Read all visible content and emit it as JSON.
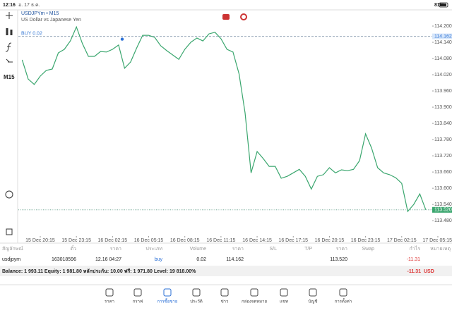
{
  "status_bar": {
    "time": "12:16",
    "date": "อ. 17 ธ.ค.",
    "battery": "81%"
  },
  "chart_data": {
    "type": "line",
    "title": "USDJPYm • M15",
    "subtitle": "US Dollar vs Japanese Yen",
    "timeframe": "M15",
    "color": "#3aa66e",
    "grid": false,
    "categories": [
      null,
      null,
      null,
      "15 Dec 20:15",
      null,
      null,
      null,
      null,
      null,
      "15 Dec 23:15",
      null,
      null,
      null,
      null,
      null,
      "16 Dec 02:15",
      null,
      null,
      null,
      null,
      null,
      "16 Dec 05:15",
      null,
      null,
      null,
      null,
      null,
      "16 Dec 08:15",
      null,
      null,
      null,
      null,
      null,
      "16 Dec 11:15",
      null,
      null,
      null,
      null,
      null,
      "16 Dec 14:15",
      null,
      null,
      null,
      null,
      null,
      "16 Dec 17:15",
      null,
      null,
      null,
      null,
      null,
      "16 Dec 20:15",
      null,
      null,
      null,
      null,
      null,
      "16 Dec 23:15",
      null,
      null,
      null,
      null,
      null,
      "17 Dec 02:15",
      null,
      null,
      null,
      null,
      null,
      "17 Dec 05:15"
    ],
    "values": [
      114.075,
      114.004,
      113.984,
      114.015,
      114.036,
      114.041,
      114.101,
      114.114,
      114.145,
      114.197,
      114.135,
      114.088,
      114.088,
      114.106,
      114.104,
      114.114,
      114.13,
      114.044,
      114.067,
      114.119,
      114.166,
      114.166,
      114.158,
      114.127,
      114.109,
      114.093,
      114.077,
      114.114,
      114.14,
      114.156,
      114.145,
      114.171,
      114.177,
      114.153,
      114.114,
      114.104,
      114.023,
      113.879,
      113.657,
      113.736,
      113.71,
      113.681,
      113.681,
      113.637,
      113.644,
      113.657,
      113.67,
      113.644,
      113.597,
      113.644,
      113.65,
      113.676,
      113.657,
      113.668,
      113.665,
      113.67,
      113.702,
      113.801,
      113.749,
      113.676,
      113.657,
      113.65,
      113.639,
      113.618,
      113.514,
      113.54,
      113.579,
      113.52,
      null,
      null
    ],
    "ylim": [
      113.423,
      114.26
    ],
    "yticks": [
      {
        "value": 113.48,
        "label": "113.480"
      },
      {
        "value": 113.54,
        "label": "113.540"
      },
      {
        "value": 113.6,
        "label": "113.600"
      },
      {
        "value": 113.66,
        "label": "113.660"
      },
      {
        "value": 113.72,
        "label": "113.720"
      },
      {
        "value": 113.78,
        "label": "113.780"
      },
      {
        "value": 113.84,
        "label": "113.840"
      },
      {
        "value": 113.9,
        "label": "113.900"
      },
      {
        "value": 113.96,
        "label": "113.960"
      },
      {
        "value": 114.02,
        "label": "114.020"
      },
      {
        "value": 114.08,
        "label": "114.080"
      },
      {
        "value": 114.14,
        "label": "114.140"
      },
      {
        "value": 114.2,
        "label": "114.200"
      }
    ],
    "position_line": {
      "label": "BUY 0.02",
      "value": 114.162
    },
    "bid_line": {
      "value": 113.52,
      "label": "113.520"
    }
  },
  "trades": {
    "columns": [
      "สัญลักษณ์",
      "ตั๋ว",
      "ราคา",
      "ประเภท",
      "Volume",
      "ราคา",
      "S/L",
      "T/P",
      "ราคา",
      "Swap",
      "กำไร",
      "หมายเหตุ"
    ],
    "row": {
      "symbol": "usdjpym",
      "ticket": "163018596",
      "time": "12.16 04:27",
      "type": "buy",
      "volume": "0.02",
      "open_price": "114.162",
      "price": "113.520",
      "profit": "-11.31"
    }
  },
  "summary": {
    "text": "Balance: 1 993.11 Equity: 1 981.80 หลักประกัน: 10.00 ฟรี: 1 971.80 Level: 19 818.00%",
    "profit": "-11.31",
    "currency": "USD"
  },
  "tabs": [
    "ราคา",
    "กราฟ",
    "การซื้อขาย",
    "ประวัติ",
    "ข่าว",
    "กล่องจดหมาย",
    "แชท",
    "บัญชี",
    "การตั้งค่า"
  ]
}
